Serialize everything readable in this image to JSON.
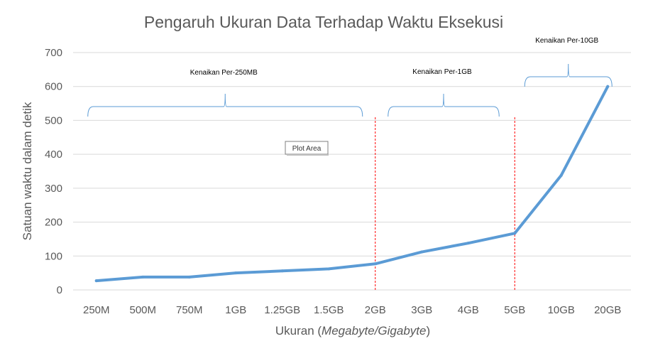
{
  "chart_data": {
    "type": "line",
    "title": "Pengaruh Ukuran Data Terhadap Waktu Eksekusi",
    "xlabel_prefix": "Ukuran (",
    "xlabel_italic": "Megabyte/Gigabyte",
    "xlabel_suffix": ")",
    "ylabel": "Satuan waktu dalam detik",
    "categories": [
      "250M",
      "500M",
      "750M",
      "1GB",
      "1.25GB",
      "1.5GB",
      "2GB",
      "3GB",
      "4GB",
      "5GB",
      "10GB",
      "20GB"
    ],
    "series": [
      {
        "values": [
          27,
          38,
          38,
          50,
          56,
          62,
          77,
          112,
          138,
          167,
          338,
          600
        ]
      }
    ],
    "ylim": [
      0,
      700
    ],
    "yticks": [
      "0",
      "100",
      "200",
      "300",
      "400",
      "500",
      "600",
      "700"
    ],
    "grid": true,
    "line_color": "#5b9bd5",
    "divider_color": "#ff0000",
    "annotations": [
      {
        "text": "Kenaikan Per-250MB",
        "from": "250M",
        "to": "2GB"
      },
      {
        "text": "Kenaikan Per-1GB",
        "from": "2GB",
        "to": "5GB"
      },
      {
        "text": "Kenaikan Per-10GB",
        "from": "5GB",
        "to": "20GB"
      }
    ],
    "dividers_after": [
      "2GB",
      "5GB"
    ],
    "tooltip": "Plot Area"
  }
}
